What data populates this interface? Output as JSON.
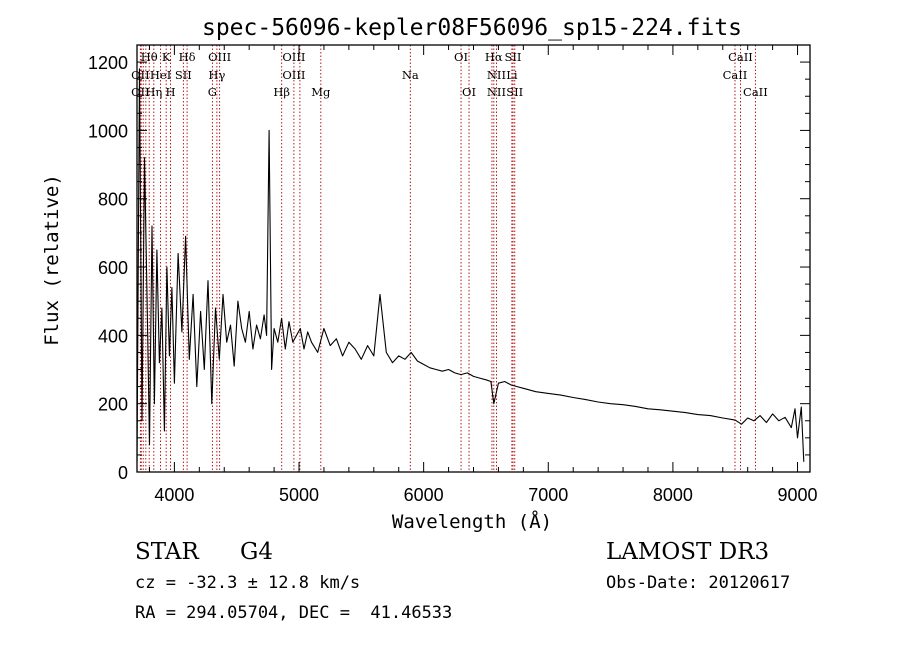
{
  "chart_data": {
    "type": "line",
    "title": "spec-56096-kepler08F56096_sp15-224.fits",
    "xlabel": "Wavelength (Å)",
    "ylabel": "Flux (relative)",
    "xlim": [
      3700,
      9100
    ],
    "ylim": [
      0,
      1250
    ],
    "x_ticks": [
      4000,
      5000,
      6000,
      7000,
      8000,
      9000
    ],
    "x_tick_labels": [
      "4000",
      "5000",
      "6000",
      "7000",
      "8000",
      "9000"
    ],
    "y_ticks": [
      0,
      200,
      400,
      600,
      800,
      1000,
      1200
    ],
    "y_tick_labels": [
      "0",
      "200",
      "400",
      "600",
      "800",
      "1000",
      "1200"
    ],
    "grid": false,
    "series": [
      {
        "name": "flux",
        "color": "#000000",
        "x": [
          3700,
          3720,
          3740,
          3760,
          3780,
          3800,
          3820,
          3840,
          3860,
          3880,
          3900,
          3920,
          3940,
          3960,
          3980,
          4000,
          4030,
          4060,
          4090,
          4120,
          4150,
          4180,
          4210,
          4240,
          4270,
          4300,
          4330,
          4360,
          4390,
          4420,
          4450,
          4480,
          4510,
          4540,
          4570,
          4600,
          4630,
          4660,
          4690,
          4720,
          4740,
          4760,
          4780,
          4800,
          4830,
          4860,
          4890,
          4920,
          4950,
          4980,
          5010,
          5040,
          5070,
          5100,
          5150,
          5200,
          5250,
          5300,
          5350,
          5400,
          5450,
          5500,
          5550,
          5600,
          5650,
          5700,
          5750,
          5800,
          5850,
          5900,
          5950,
          6000,
          6050,
          6100,
          6150,
          6200,
          6250,
          6300,
          6350,
          6400,
          6450,
          6500,
          6540,
          6563,
          6600,
          6650,
          6700,
          6750,
          6800,
          6900,
          7000,
          7100,
          7200,
          7300,
          7400,
          7500,
          7600,
          7700,
          7800,
          7900,
          8000,
          8100,
          8200,
          8300,
          8400,
          8500,
          8550,
          8600,
          8650,
          8700,
          8750,
          8800,
          8850,
          8900,
          8950,
          8980,
          9000,
          9030,
          9050
        ],
        "values": [
          30,
          1180,
          150,
          920,
          520,
          80,
          720,
          200,
          650,
          320,
          480,
          120,
          600,
          340,
          540,
          260,
          640,
          410,
          690,
          330,
          520,
          250,
          470,
          300,
          560,
          200,
          480,
          330,
          520,
          380,
          430,
          310,
          500,
          420,
          380,
          470,
          360,
          430,
          390,
          460,
          400,
          1000,
          300,
          420,
          380,
          450,
          360,
          440,
          380,
          400,
          420,
          360,
          410,
          380,
          350,
          420,
          370,
          390,
          340,
          380,
          360,
          330,
          370,
          340,
          520,
          350,
          320,
          340,
          330,
          350,
          325,
          315,
          305,
          300,
          295,
          300,
          290,
          285,
          290,
          280,
          275,
          270,
          265,
          200,
          260,
          265,
          255,
          250,
          245,
          235,
          230,
          225,
          218,
          212,
          205,
          200,
          197,
          192,
          185,
          182,
          178,
          174,
          168,
          165,
          158,
          152,
          140,
          158,
          150,
          165,
          145,
          170,
          150,
          160,
          130,
          185,
          100,
          190,
          30
        ]
      }
    ],
    "line_labels": [
      {
        "text": "OII",
        "x": 3727,
        "row": 2
      },
      {
        "text": "OII",
        "x": 3727,
        "row": 3
      },
      {
        "text": "Hθ",
        "x": 3798,
        "row": 1
      },
      {
        "text": "K",
        "x": 3934,
        "row": 1
      },
      {
        "text": "HeI",
        "x": 3889,
        "row": 2
      },
      {
        "text": "Hη",
        "x": 3835,
        "row": 3
      },
      {
        "text": "H",
        "x": 3969,
        "row": 3
      },
      {
        "text": "Hδ",
        "x": 4102,
        "row": 1
      },
      {
        "text": "SII",
        "x": 4072,
        "row": 2
      },
      {
        "text": "OIII",
        "x": 4363,
        "row": 1
      },
      {
        "text": "Hγ",
        "x": 4341,
        "row": 2
      },
      {
        "text": "G",
        "x": 4305,
        "row": 3
      },
      {
        "text": "Hβ",
        "x": 4861,
        "row": 3
      },
      {
        "text": "OIII",
        "x": 4959,
        "row": 1
      },
      {
        "text": "OIII",
        "x": 4959,
        "row": 2
      },
      {
        "text": "Mg",
        "x": 5175,
        "row": 3
      },
      {
        "text": "Na",
        "x": 5893,
        "row": 2
      },
      {
        "text": "OI",
        "x": 6300,
        "row": 1
      },
      {
        "text": "OI",
        "x": 6364,
        "row": 3
      },
      {
        "text": "Hα",
        "x": 6563,
        "row": 1
      },
      {
        "text": "SII",
        "x": 6717,
        "row": 1
      },
      {
        "text": "NII",
        "x": 6584,
        "row": 2
      },
      {
        "text": "Li",
        "x": 6708,
        "row": 2
      },
      {
        "text": "NII",
        "x": 6584,
        "row": 3
      },
      {
        "text": "SII",
        "x": 6731,
        "row": 3
      },
      {
        "text": "CaII",
        "x": 8542,
        "row": 1
      },
      {
        "text": "CaII",
        "x": 8498,
        "row": 2
      },
      {
        "text": "CaII",
        "x": 8662,
        "row": 3
      }
    ],
    "marker_lines": [
      3727,
      3734,
      3750,
      3771,
      3798,
      3835,
      3889,
      3934,
      3969,
      4072,
      4102,
      4305,
      4341,
      4363,
      4861,
      4959,
      5007,
      5175,
      5893,
      6300,
      6364,
      6548,
      6563,
      6584,
      6708,
      6717,
      6731,
      8498,
      8542,
      8662
    ],
    "marker_color": "#b00000"
  },
  "info": {
    "class": "STAR",
    "subclass": "G4",
    "survey": "LAMOST DR3",
    "redshift": "cz = -32.3 ± 12.8 km/s",
    "obs_date": "Obs-Date: 20120617",
    "coords": "RA = 294.05704, DEC =  41.46533"
  }
}
